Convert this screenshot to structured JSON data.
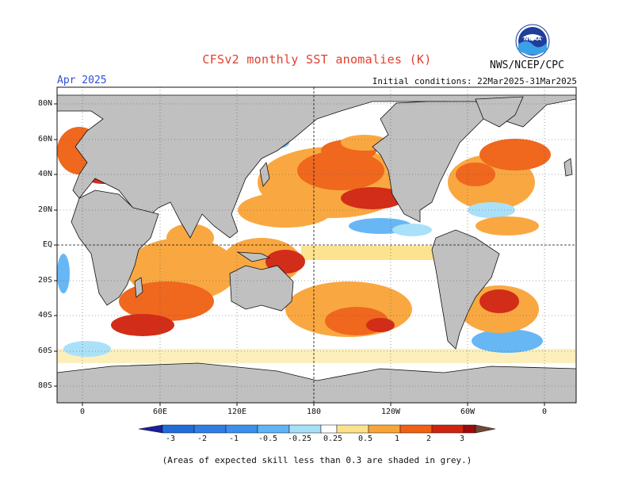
{
  "header": {
    "title": "CFSv2 monthly SST anomalies (K)",
    "organization": "NWS/NCEP/CPC",
    "target_month": "Apr 2025",
    "initial_conditions": "Initial conditions: 22Mar2025-31Mar2025"
  },
  "logo": {
    "text": "NOAA",
    "icon": "noaa-logo"
  },
  "lat_ticks": [
    "80N",
    "60N",
    "40N",
    "20N",
    "EQ",
    "20S",
    "40S",
    "60S",
    "80S"
  ],
  "lon_ticks": [
    "0",
    "60E",
    "120E",
    "180",
    "120W",
    "60W",
    "0"
  ],
  "colorbar": {
    "labels": [
      "-3",
      "-2",
      "-1",
      "-0.5",
      "-0.25",
      "0.25",
      "0.5",
      "1",
      "2",
      "3"
    ],
    "colors": [
      "#1d1d9e",
      "#1e6ddb",
      "#3b8fee",
      "#5fb4f5",
      "#a6e0f8",
      "#ffffff",
      "#fbe28a",
      "#f9a437",
      "#f05f12",
      "#d0220c",
      "#9c0a0a",
      "#6e4838"
    ]
  },
  "footnote": "(Areas of expected skill less than 0.3 are shaded in grey.)"
}
